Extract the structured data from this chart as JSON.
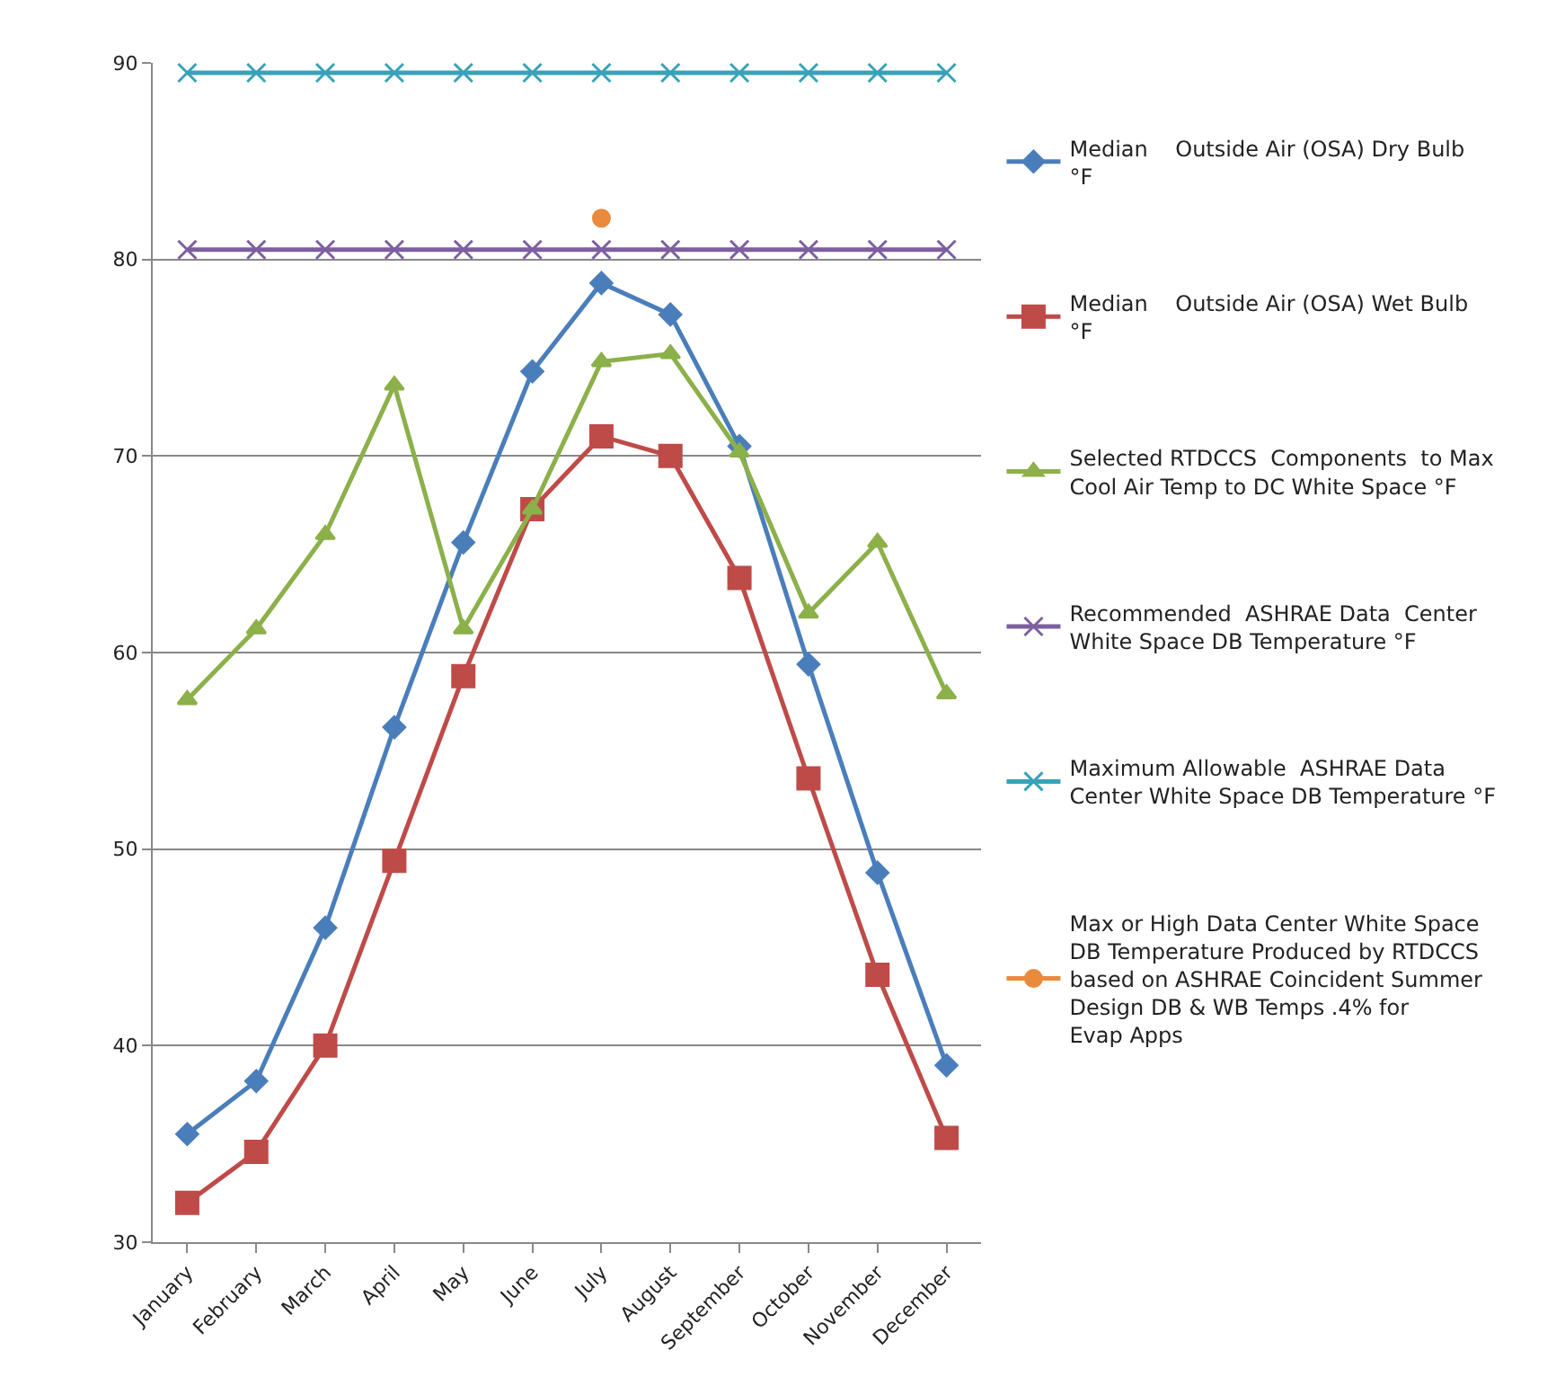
{
  "chart_data": {
    "type": "line",
    "categories": [
      "January",
      "February",
      "March",
      "April",
      "May",
      "June",
      "July",
      "August",
      "September",
      "October",
      "November",
      "December"
    ],
    "series": [
      {
        "name": "Median    Outside Air (OSA) Dry Bulb °F",
        "color": "#4a7ebb",
        "marker": "diamond",
        "values": [
          35.5,
          38.2,
          46.0,
          56.2,
          65.6,
          74.3,
          78.8,
          77.2,
          70.5,
          59.4,
          48.8,
          39.0
        ]
      },
      {
        "name": "Median    Outside Air (OSA) Wet Bulb  °F",
        "color": "#be4b48",
        "marker": "square",
        "values": [
          32.0,
          34.6,
          40.0,
          49.4,
          58.8,
          67.3,
          71.0,
          70.0,
          63.8,
          53.6,
          43.6,
          35.3
        ]
      },
      {
        "name": "Selected RTDCCS  Components  to Max Cool Air Temp to DC White Space °F",
        "color": "#8cb04a",
        "marker": "triangle",
        "values": [
          57.6,
          61.2,
          66.0,
          73.6,
          61.2,
          67.3,
          74.8,
          75.2,
          70.2,
          62.0,
          65.6,
          57.9
        ]
      },
      {
        "name": "Recommended  ASHRAE Data  Center White Space DB Temperature °F",
        "color": "#7d5fa0",
        "marker": "cross",
        "values": [
          80.5,
          80.5,
          80.5,
          80.5,
          80.5,
          80.5,
          80.5,
          80.5,
          80.5,
          80.5,
          80.5,
          80.5
        ]
      },
      {
        "name": "Maximum Allowable  ASHRAE Data Center White Space DB Temperature °F",
        "color": "#38a2b8",
        "marker": "cross",
        "values": [
          89.5,
          89.5,
          89.5,
          89.5,
          89.5,
          89.5,
          89.5,
          89.5,
          89.5,
          89.5,
          89.5,
          89.5
        ]
      },
      {
        "name": "Max or High Data Center White Space DB Temperature Produced by RTDCCS based on ASHRAE Coincident Summer Design DB & WB Temps .4% for Evap Apps",
        "color": "#e98a3c",
        "marker": "circle",
        "values": [
          null,
          null,
          null,
          null,
          null,
          null,
          82.1,
          null,
          null,
          null,
          null,
          null
        ]
      }
    ],
    "ylim": [
      30,
      90
    ],
    "yticks": [
      30,
      40,
      50,
      60,
      70,
      80,
      90
    ],
    "grid": "y",
    "legend": "right"
  }
}
